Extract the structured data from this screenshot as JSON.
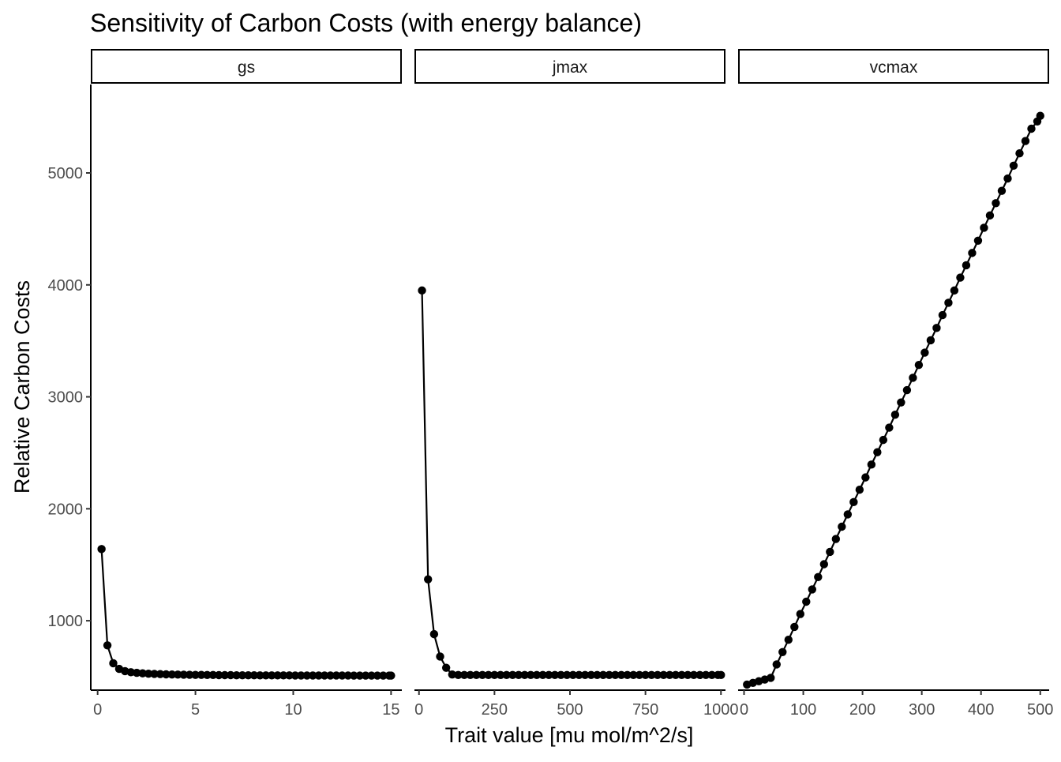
{
  "chart_data": {
    "type": "line",
    "title": "Sensitivity of Carbon Costs (with energy balance)",
    "xlabel": "Trait value [mu mol/m^2/s]",
    "ylabel": "Relative Carbon Costs",
    "y_ticks": [
      1000,
      2000,
      3000,
      4000,
      5000
    ],
    "ylim": [
      380,
      5790
    ],
    "grid": false,
    "markers": true,
    "colors": {
      "line": "#000000",
      "point": "#000000",
      "tick_text": "#4d4d4d",
      "strip_border": "#000000"
    },
    "facets": [
      {
        "label": "gs",
        "xlim": [
          -0.35,
          15.55
        ],
        "x_ticks": [
          0,
          5,
          10,
          15
        ],
        "x": [
          0.2,
          0.5,
          0.8,
          1.1,
          1.4,
          1.7,
          2.0,
          2.3,
          2.6,
          2.9,
          3.2,
          3.5,
          3.8,
          4.1,
          4.4,
          4.7,
          5.0,
          5.3,
          5.6,
          5.9,
          6.2,
          6.5,
          6.8,
          7.1,
          7.4,
          7.7,
          8.0,
          8.3,
          8.6,
          8.9,
          9.2,
          9.5,
          9.8,
          10.1,
          10.4,
          10.7,
          11.0,
          11.3,
          11.6,
          11.9,
          12.2,
          12.5,
          12.8,
          13.1,
          13.4,
          13.7,
          14.0,
          14.3,
          14.6,
          14.9,
          15.0
        ],
        "y": [
          1640,
          780,
          620,
          570,
          550,
          540,
          535,
          530,
          527,
          525,
          523,
          521,
          520,
          519,
          518,
          517,
          516,
          516,
          515,
          515,
          514,
          514,
          514,
          513,
          513,
          513,
          513,
          512,
          512,
          512,
          512,
          512,
          512,
          511,
          511,
          511,
          511,
          511,
          511,
          511,
          511,
          511,
          511,
          510,
          510,
          510,
          510,
          510,
          510,
          510,
          510
        ]
      },
      {
        "label": "jmax",
        "xlim": [
          -15,
          1015
        ],
        "x_ticks": [
          0,
          250,
          500,
          750,
          1000
        ],
        "x": [
          10,
          30,
          50,
          70,
          90,
          110,
          130,
          150,
          170,
          190,
          210,
          230,
          250,
          270,
          290,
          310,
          330,
          350,
          370,
          390,
          410,
          430,
          450,
          470,
          490,
          510,
          530,
          550,
          570,
          590,
          610,
          630,
          650,
          670,
          690,
          710,
          730,
          750,
          770,
          790,
          810,
          830,
          850,
          870,
          890,
          910,
          930,
          950,
          970,
          990,
          1000
        ],
        "y": [
          3950,
          1370,
          880,
          680,
          580,
          520,
          515,
          515,
          515,
          515,
          515,
          515,
          515,
          515,
          515,
          515,
          515,
          515,
          515,
          515,
          515,
          515,
          515,
          515,
          515,
          515,
          515,
          515,
          515,
          515,
          515,
          515,
          515,
          515,
          515,
          515,
          515,
          515,
          515,
          515,
          515,
          515,
          515,
          515,
          515,
          515,
          515,
          515,
          515,
          515,
          515
        ]
      },
      {
        "label": "vcmax",
        "xlim": [
          -10,
          515
        ],
        "x_ticks": [
          0,
          100,
          200,
          300,
          400,
          500
        ],
        "x": [
          5,
          15,
          25,
          35,
          45,
          55,
          65,
          75,
          85,
          95,
          105,
          115,
          125,
          135,
          145,
          155,
          165,
          175,
          185,
          195,
          205,
          215,
          225,
          235,
          245,
          255,
          265,
          275,
          285,
          295,
          305,
          315,
          325,
          335,
          345,
          355,
          365,
          375,
          385,
          395,
          405,
          415,
          425,
          435,
          445,
          455,
          465,
          475,
          485,
          495,
          500
        ],
        "y": [
          430,
          445,
          460,
          475,
          490,
          610,
          720,
          830,
          945,
          1060,
          1170,
          1280,
          1390,
          1505,
          1615,
          1730,
          1840,
          1950,
          2060,
          2170,
          2280,
          2395,
          2505,
          2615,
          2725,
          2840,
          2950,
          3060,
          3170,
          3285,
          3395,
          3505,
          3615,
          3730,
          3840,
          3950,
          4065,
          4175,
          4285,
          4395,
          4510,
          4620,
          4730,
          4840,
          4950,
          5065,
          5175,
          5285,
          5395,
          5460,
          5510
        ]
      }
    ]
  }
}
